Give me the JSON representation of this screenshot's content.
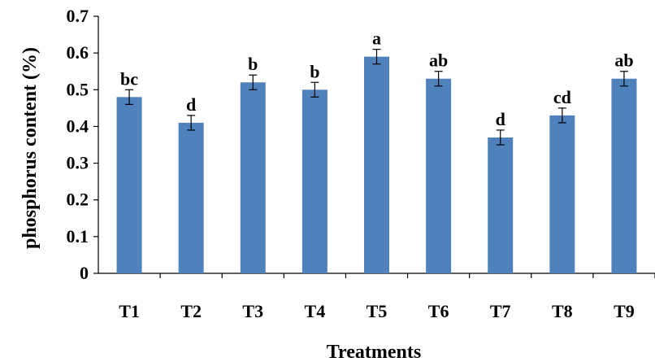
{
  "chart_data": {
    "type": "bar",
    "title": "",
    "xlabel": "Treatments",
    "ylabel": "phosphorus content (%)",
    "ylim": [
      0,
      0.7
    ],
    "yticks": [
      "0",
      "0.1",
      "0.2",
      "0.3",
      "0.4",
      "0.5",
      "0.6",
      "0.7"
    ],
    "categories": [
      "T1",
      "T2",
      "T3",
      "T4",
      "T5",
      "T6",
      "T7",
      "T8",
      "T9"
    ],
    "values": [
      0.48,
      0.41,
      0.52,
      0.5,
      0.59,
      0.53,
      0.37,
      0.43,
      0.53
    ],
    "errors": [
      0.02,
      0.02,
      0.02,
      0.02,
      0.02,
      0.02,
      0.02,
      0.02,
      0.02
    ],
    "significance_letters": [
      "bc",
      "d",
      "b",
      "b",
      "a",
      "ab",
      "d",
      "cd",
      "ab"
    ],
    "grid": false,
    "legend": "none",
    "bar_color": "#4F81BD"
  }
}
